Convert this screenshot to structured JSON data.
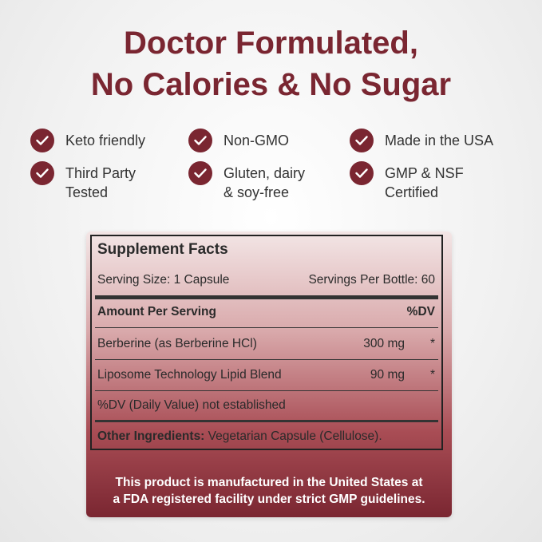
{
  "headline": {
    "line1": "Doctor Formulated,",
    "line2": "No Calories & No Sugar"
  },
  "features": [
    {
      "label": "Keto friendly",
      "icon": "check-circle-icon"
    },
    {
      "label": "Non-GMO",
      "icon": "check-circle-icon"
    },
    {
      "label": "Made in the USA",
      "icon": "check-circle-icon"
    },
    {
      "label": "Third Party\nTested",
      "icon": "check-circle-icon"
    },
    {
      "label": "Gluten, dairy\n& soy-free",
      "icon": "check-circle-icon"
    },
    {
      "label": "GMP & NSF\nCertified",
      "icon": "check-circle-icon"
    }
  ],
  "facts": {
    "title": "Supplement Facts",
    "serving_size": "Serving Size: 1 Capsule",
    "servings_per_bottle": "Servings Per Bottle: 60",
    "amount_header": "Amount Per Serving",
    "dv_header": "%DV",
    "items": [
      {
        "name": "Berberine (as Berberine HCl)",
        "amount": "300 mg",
        "dv": "*"
      },
      {
        "name": "Liposome Technology Lipid Blend",
        "amount": "90 mg",
        "dv": "*"
      }
    ],
    "dv_note": "%DV (Daily Value) not established",
    "other_label": "Other Ingredients:",
    "other_value": " Vegetarian Capsule (Cellulose)."
  },
  "footnote": "This product is manufactured in the United States at\na FDA registered facility under strict GMP guidelines.",
  "colors": {
    "accent": "#7a2631",
    "text": "#333333"
  }
}
